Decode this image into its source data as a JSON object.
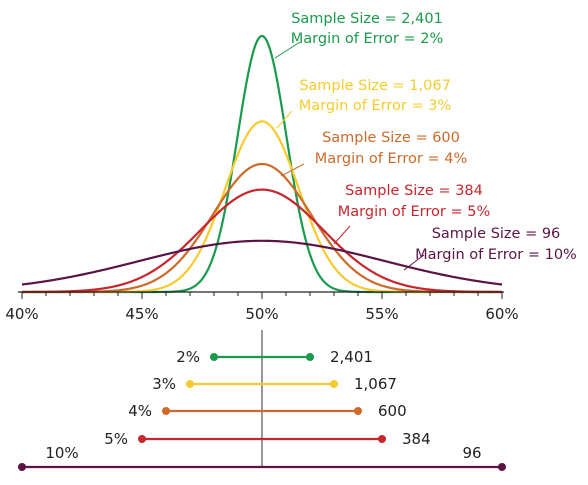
{
  "chart_data": [
    {
      "type": "line",
      "title": "",
      "xlabel": "",
      "ylabel": "",
      "x_ticks": [
        "40%",
        "45%",
        "50%",
        "55%",
        "60%"
      ],
      "xlim": [
        40,
        60
      ],
      "grid": false,
      "legend": "none",
      "series": [
        {
          "name": "Sample Size = 2,401",
          "moe_label": "Margin of Error = 2%",
          "mean": 50,
          "margin": 2,
          "color": "#1a9a4c"
        },
        {
          "name": "Sample Size = 1,067",
          "moe_label": "Margin of Error = 3%",
          "mean": 50,
          "margin": 3,
          "color": "#f7cb2d"
        },
        {
          "name": "Sample Size = 600",
          "moe_label": "Margin of Error = 4%",
          "mean": 50,
          "margin": 4,
          "color": "#cc6a2a"
        },
        {
          "name": "Sample Size = 384",
          "moe_label": "Margin of Error = 5%",
          "mean": 50,
          "margin": 5,
          "color": "#c8262e"
        },
        {
          "name": "Sample Size = 96",
          "moe_label": "Margin of Error = 10%",
          "mean": 50,
          "margin": 10,
          "color": "#5b1446"
        }
      ]
    },
    {
      "type": "interval",
      "center": 50,
      "intervals": [
        {
          "margin_label": "2%",
          "size_label": "2,401",
          "margin": 2,
          "color": "#1a9a4c"
        },
        {
          "margin_label": "3%",
          "size_label": "1,067",
          "margin": 3,
          "color": "#f7cb2d"
        },
        {
          "margin_label": "4%",
          "size_label": "600",
          "margin": 4,
          "color": "#cc6a2a"
        },
        {
          "margin_label": "5%",
          "size_label": "384",
          "margin": 5,
          "color": "#c8262e"
        },
        {
          "margin_label": "10%",
          "size_label": "96",
          "margin": 10,
          "color": "#5b1446"
        }
      ]
    }
  ]
}
